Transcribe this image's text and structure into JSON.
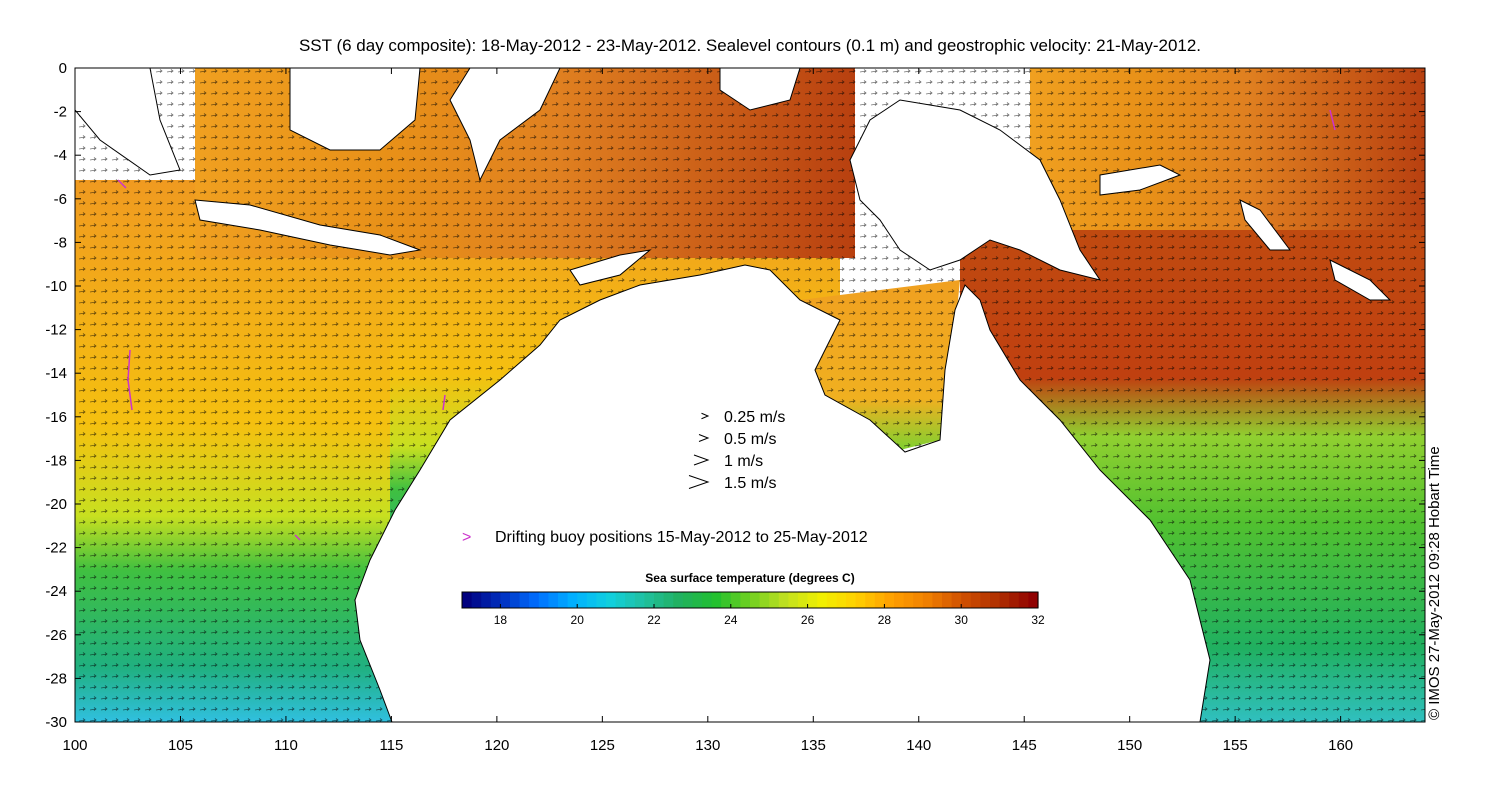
{
  "title": "SST (6 day composite): 18-May-2012 - 23-May-2012. Sealevel contours (0.1 m) and geostrophic velocity: 21-May-2012.",
  "credit": "© IMOS 27-May-2012 09:28 Hobart Time",
  "chart_data": {
    "type": "heatmap",
    "x_ticks": [
      "100",
      "105",
      "110",
      "115",
      "120",
      "125",
      "130",
      "135",
      "140",
      "145",
      "150",
      "155",
      "160"
    ],
    "y_ticks": [
      "0",
      "-2",
      "-4",
      "-6",
      "-8",
      "-10",
      "-12",
      "-14",
      "-16",
      "-18",
      "-20",
      "-22",
      "-24",
      "-26",
      "-28",
      "-30"
    ],
    "xlim": [
      100,
      164
    ],
    "ylim": [
      -30,
      0
    ],
    "colorbar": {
      "title": "Sea surface temperature (degrees C)",
      "ticks": [
        "18",
        "20",
        "22",
        "24",
        "26",
        "28",
        "30",
        "32"
      ],
      "range": [
        17,
        32
      ],
      "colors": [
        "#00007f",
        "#0030c0",
        "#0070ff",
        "#00b0ff",
        "#10d0e0",
        "#20c0a0",
        "#20b060",
        "#20c030",
        "#70d020",
        "#c0e020",
        "#f0f000",
        "#ffd000",
        "#ffa000",
        "#f08000",
        "#d05000",
        "#b03000",
        "#900000"
      ]
    },
    "velocity_legend": [
      {
        "label": "0.25 m/s",
        "speed": 0.25
      },
      {
        "label": "0.5 m/s",
        "speed": 0.5
      },
      {
        "label": "1 m/s",
        "speed": 1
      },
      {
        "label": "1.5 m/s",
        "speed": 1.5
      }
    ],
    "buoy_legend": {
      "symbol": ">",
      "label": "Drifting buoy positions 15-May-2012 to 25-May-2012",
      "color": "#cc33cc"
    }
  }
}
